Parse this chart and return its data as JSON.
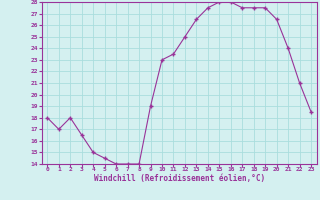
{
  "x": [
    0,
    1,
    2,
    3,
    4,
    5,
    6,
    7,
    8,
    9,
    10,
    11,
    12,
    13,
    14,
    15,
    16,
    17,
    18,
    19,
    20,
    21,
    22,
    23
  ],
  "y": [
    18,
    17,
    18,
    16.5,
    15,
    14.5,
    14,
    14,
    14,
    19,
    23,
    23.5,
    25,
    26.5,
    27.5,
    28,
    28,
    27.5,
    27.5,
    27.5,
    26.5,
    24,
    21,
    18.5
  ],
  "line_color": "#993399",
  "marker": "+",
  "marker_color": "#993399",
  "bg_color": "#d4f0f0",
  "grid_color": "#aadddd",
  "tick_color": "#993399",
  "xlabel": "Windchill (Refroidissement éolien,°C)",
  "xlabel_color": "#993399",
  "ylim": [
    14,
    28
  ],
  "xlim": [
    -0.5,
    23.5
  ],
  "yticks": [
    14,
    15,
    16,
    17,
    18,
    19,
    20,
    21,
    22,
    23,
    24,
    25,
    26,
    27,
    28
  ],
  "xticks": [
    0,
    1,
    2,
    3,
    4,
    5,
    6,
    7,
    8,
    9,
    10,
    11,
    12,
    13,
    14,
    15,
    16,
    17,
    18,
    19,
    20,
    21,
    22,
    23
  ],
  "xtick_labels": [
    "0",
    "1",
    "2",
    "3",
    "4",
    "5",
    "6",
    "7",
    "8",
    "9",
    "10",
    "11",
    "12",
    "13",
    "14",
    "15",
    "16",
    "17",
    "18",
    "19",
    "20",
    "21",
    "22",
    "23"
  ],
  "ytick_labels": [
    "14",
    "15",
    "16",
    "17",
    "18",
    "19",
    "20",
    "21",
    "22",
    "23",
    "24",
    "25",
    "26",
    "27",
    "28"
  ]
}
